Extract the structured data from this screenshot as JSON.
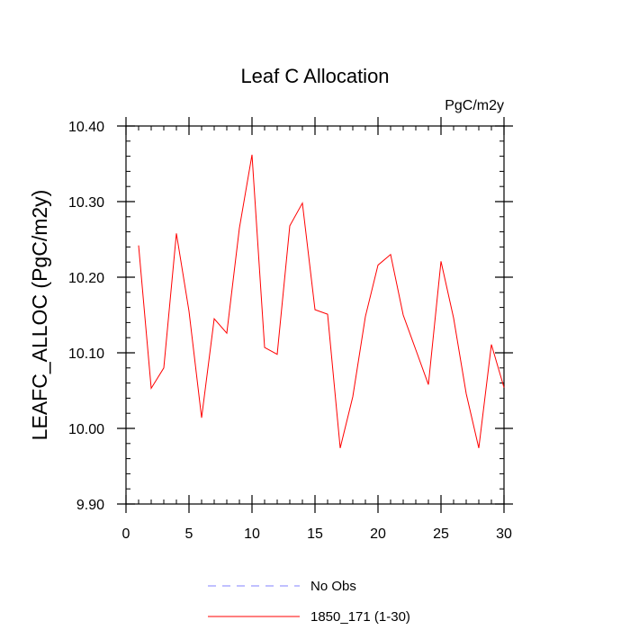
{
  "chart_data": {
    "type": "line",
    "title": "Leaf C Allocation",
    "units": "PgC/m2y",
    "ylabel": "LEAFC_ALLOC  (PgC/m2y)",
    "xlabel": "",
    "xlim": [
      0,
      30
    ],
    "ylim": [
      9.9,
      10.4
    ],
    "x_ticks": [
      0,
      5,
      10,
      15,
      20,
      25,
      30
    ],
    "x_tick_labels": [
      "0",
      "5",
      "10",
      "15",
      "20",
      "25",
      "30"
    ],
    "y_ticks": [
      9.9,
      10.0,
      10.1,
      10.2,
      10.3,
      10.4
    ],
    "y_tick_labels": [
      "9.90",
      "10.00",
      "10.10",
      "10.20",
      "10.30",
      "10.40"
    ],
    "x_minor_step": 1,
    "y_minor_step": 0.02,
    "grid": false,
    "series": [
      {
        "name": "1850_171 (1-30)",
        "color": "#ff0000",
        "style": "solid",
        "x": [
          1,
          2,
          3,
          4,
          5,
          6,
          7,
          8,
          9,
          10,
          11,
          12,
          13,
          14,
          15,
          16,
          17,
          18,
          19,
          20,
          21,
          22,
          23,
          24,
          25,
          26,
          27,
          28,
          29,
          30
        ],
        "values": [
          10.242,
          10.053,
          10.08,
          10.258,
          10.155,
          10.014,
          10.145,
          10.126,
          10.265,
          10.362,
          10.107,
          10.098,
          10.268,
          10.298,
          10.157,
          10.151,
          9.974,
          10.042,
          10.148,
          10.216,
          10.23,
          10.15,
          10.104,
          10.058,
          10.221,
          10.146,
          10.046,
          9.974,
          10.111,
          10.054
        ]
      }
    ],
    "legend": [
      {
        "label": "No Obs",
        "color": "#8080ff",
        "style": "dashed"
      },
      {
        "label": "1850_171 (1-30)",
        "color": "#ff0000",
        "style": "solid"
      }
    ],
    "legend_position": "bottom-center"
  }
}
